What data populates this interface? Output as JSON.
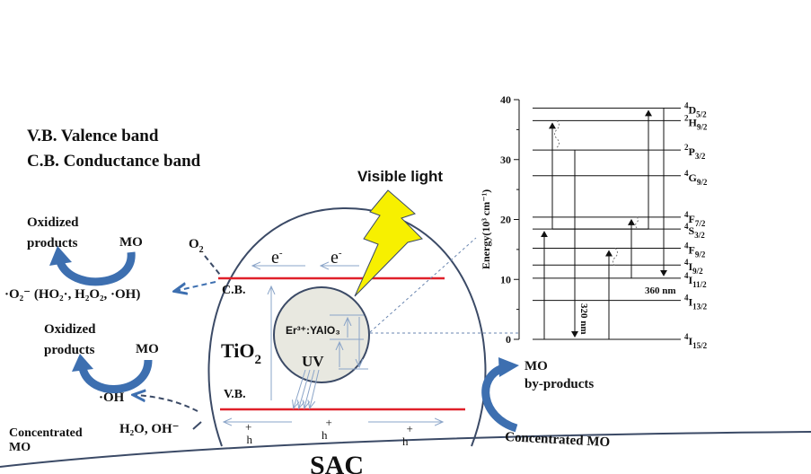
{
  "legend": {
    "vb": "V.B. Valence band",
    "cb": "C.B. Conductance band"
  },
  "labels": {
    "visible_light": "Visible light",
    "oxidized_products_1": [
      "Oxidized",
      "products"
    ],
    "mo_1": "MO",
    "o2": "O",
    "o2_sub": "2",
    "radicals": "·O₂⁻ (HO₂·, H₂O₂, ·OH)",
    "oxidized_products_2": [
      "Oxidized",
      "products"
    ],
    "mo_2": "MO",
    "oh": "·OH",
    "h2o": "H₂O, OH⁻",
    "concentrated_mo_left": [
      "Concentrated",
      "MO"
    ],
    "cb": "C.B.",
    "vb": "V.B.",
    "tio2": "TiO",
    "tio2_sub": "2",
    "electron": "e",
    "electron_sup": "-",
    "hole": "h",
    "hole_sup": "+",
    "er_yalo3": "Er³⁺:YAlO₃",
    "uv": "UV",
    "mo_byproducts": [
      "MO",
      "by-products"
    ],
    "concentrated_mo_right": "Concentrated MO",
    "sac": "SAC"
  },
  "colors": {
    "band_line": "#e0202a",
    "arrow_blue": "#3d6fb0",
    "thin_arrow": "#8aa4c8",
    "bolt_fill": "#f7f000",
    "particle_fill": "#e8e8e0",
    "outline": "#3b4a66"
  },
  "energy_diagram": {
    "ylabel": "Energy(10³ cm⁻¹)",
    "ylim": [
      0,
      40
    ],
    "ticks": [
      "0",
      "10",
      "20",
      "30",
      "40"
    ],
    "levels": [
      {
        "sup": "4",
        "term": "D",
        "sub": "5/2",
        "energy": 38.6
      },
      {
        "sup": "2",
        "term": "H",
        "sub": "9/2",
        "energy": 36.5
      },
      {
        "sup": "2",
        "term": "P",
        "sub": "3/2",
        "energy": 31.6
      },
      {
        "sup": "4",
        "term": "G",
        "sub": "9/2",
        "energy": 27.3
      },
      {
        "sup": "4",
        "term": "F",
        "sub": "7/2",
        "energy": 20.4
      },
      {
        "sup": "4",
        "term": "S",
        "sub": "3/2",
        "energy": 18.4
      },
      {
        "sup": "4",
        "term": "F",
        "sub": "9/2",
        "energy": 15.2
      },
      {
        "sup": "4",
        "term": "I",
        "sub": "9/2",
        "energy": 12.4
      },
      {
        "sup": "4",
        "term": "I",
        "sub": "11/2",
        "energy": 10.2
      },
      {
        "sup": "4",
        "term": "I",
        "sub": "13/2",
        "energy": 6.5
      },
      {
        "sup": "4",
        "term": "I",
        "sub": "15/2",
        "energy": 0
      }
    ],
    "emission_320": "320 nm",
    "emission_360": "360 nm"
  }
}
